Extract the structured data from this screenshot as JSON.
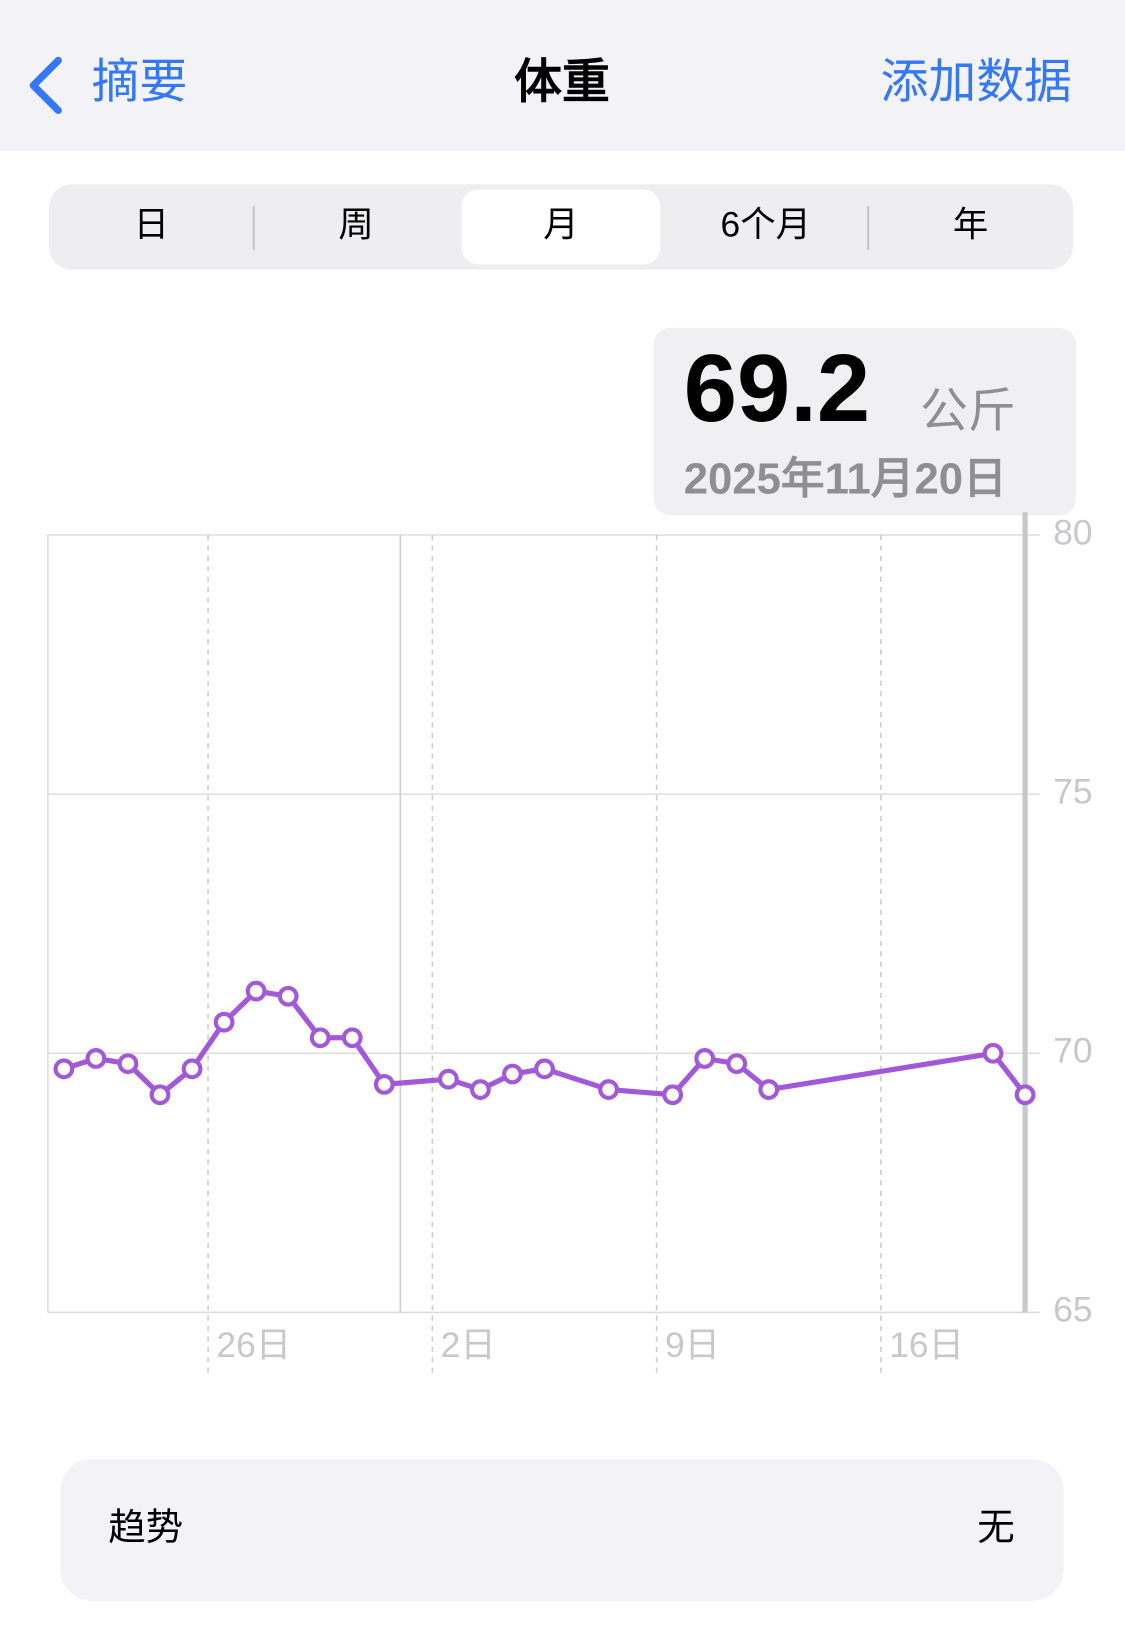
{
  "nav": {
    "back": "摘要",
    "title": "体重",
    "action": "添加数据"
  },
  "segments": [
    "日",
    "周",
    "月",
    "6个月",
    "年"
  ],
  "selected_segment": 2,
  "selection": {
    "value": "69.2",
    "unit": "公斤",
    "date": "2025年11月20日"
  },
  "chart_data": {
    "type": "line",
    "x": [
      21.5,
      22.5,
      23.5,
      24.5,
      25.5,
      26.5,
      27.5,
      28.5,
      29.5,
      30.5,
      31.5,
      33.5,
      34.5,
      35.5,
      36.5,
      38.5,
      40.5,
      41.5,
      42.5,
      43.5,
      50.5,
      51.5
    ],
    "series": [
      {
        "name": "体重",
        "color": "#a259d9",
        "values": [
          69.7,
          69.9,
          69.8,
          69.2,
          69.7,
          70.6,
          71.2,
          71.1,
          70.3,
          70.3,
          69.4,
          69.5,
          69.3,
          69.6,
          69.7,
          69.3,
          69.2,
          69.9,
          69.8,
          69.3,
          70.0,
          69.2
        ]
      }
    ],
    "xlim": [
      21,
      51.5
    ],
    "xticks": [
      {
        "value": 26,
        "label": "26日"
      },
      {
        "value": 33,
        "label": "2日"
      },
      {
        "value": 40,
        "label": "9日"
      },
      {
        "value": 47,
        "label": "16日"
      }
    ],
    "month_start": 32,
    "ylim": [
      65,
      80
    ],
    "yticks": [
      65,
      70,
      75,
      80
    ],
    "grid": true
  },
  "trend": {
    "label": "趋势",
    "value": "无"
  }
}
